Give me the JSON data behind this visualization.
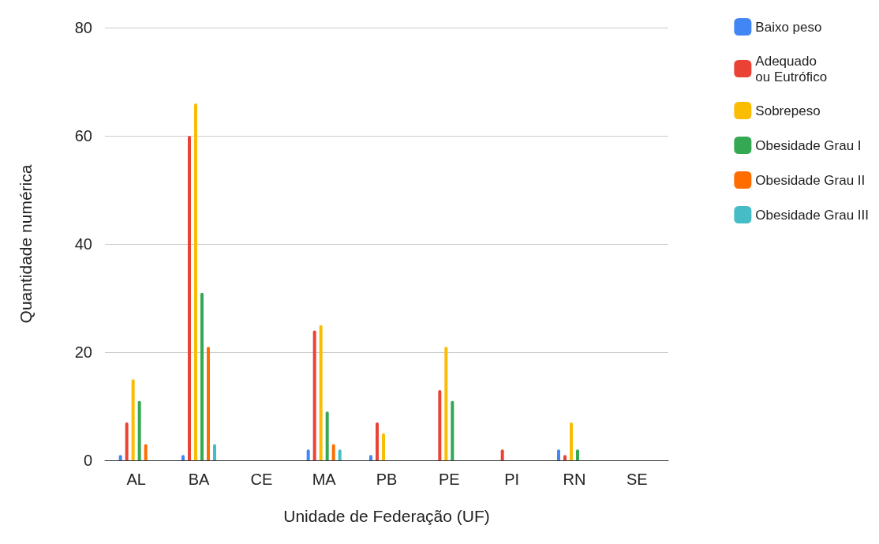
{
  "chart_data": {
    "type": "bar",
    "xlabel": "Unidade de Federação (UF)",
    "ylabel": "Quantidade numérica",
    "categories": [
      "AL",
      "BA",
      "CE",
      "MA",
      "PB",
      "PE",
      "PI",
      "RN",
      "SE"
    ],
    "series": [
      {
        "name": "Baixo peso",
        "color": "#4285f4",
        "values": [
          1,
          1,
          0,
          2,
          1,
          0,
          0,
          2,
          0
        ]
      },
      {
        "name": "Adequado\nou Eutrófico",
        "color": "#ea4335",
        "values": [
          7,
          60,
          0,
          24,
          7,
          13,
          2,
          1,
          0
        ]
      },
      {
        "name": "Sobrepeso",
        "color": "#fbbc04",
        "values": [
          15,
          66,
          0,
          25,
          5,
          21,
          0,
          7,
          0
        ]
      },
      {
        "name": "Obesidade Grau I",
        "color": "#34a853",
        "values": [
          11,
          31,
          0,
          9,
          0,
          11,
          0,
          2,
          0
        ]
      },
      {
        "name": "Obesidade Grau II",
        "color": "#ff6d01",
        "values": [
          3,
          21,
          0,
          3,
          0,
          0,
          0,
          0,
          0
        ]
      },
      {
        "name": "Obesidade Grau III",
        "color": "#46bdc6",
        "values": [
          0,
          3,
          0,
          2,
          0,
          0,
          0,
          0,
          0
        ]
      }
    ],
    "ylim": [
      0,
      80
    ],
    "yticks": [
      0,
      20,
      40,
      60,
      80
    ],
    "grid": "y",
    "legend": "right"
  }
}
